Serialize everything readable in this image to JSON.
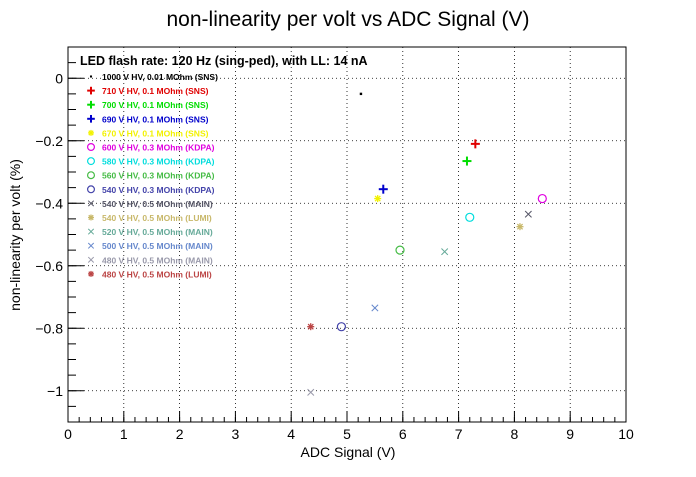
{
  "chart_data": {
    "type": "scatter",
    "title": "non-linearity per volt vs ADC Signal (V)",
    "xlabel": "ADC Signal (V)",
    "ylabel": "non-linearity per volt (%)",
    "xlim": [
      0,
      10
    ],
    "ylim": [
      -1.1,
      0.1
    ],
    "xticks": [
      0,
      1,
      2,
      3,
      4,
      5,
      6,
      7,
      8,
      9,
      10
    ],
    "yticks": [
      0,
      -0.2,
      -0.4,
      -0.6,
      -0.8,
      -1
    ],
    "ytick_labels": [
      "0",
      "−0.2",
      "−0.4",
      "−0.6",
      "−0.8",
      "−1"
    ],
    "grid": true,
    "legend_header": "LED flash rate: 120 Hz  (sing-ped), with LL: 14 nA",
    "legend_placement": "top-left",
    "series": [
      {
        "name": "1000 V HV, 0.01 MOhm (SNS)",
        "color": "#000000",
        "marker": "dot",
        "points": [
          [
            5.25,
            -0.05
          ]
        ]
      },
      {
        "name": "710 V HV, 0.1 MOhm (SNS)",
        "color": "#e00000",
        "marker": "plus",
        "points": [
          [
            7.3,
            -0.21
          ]
        ]
      },
      {
        "name": "700 V HV, 0.1 MOhm (SNS)",
        "color": "#00dd00",
        "marker": "plus",
        "points": [
          [
            7.15,
            -0.265
          ]
        ]
      },
      {
        "name": "690 V HV, 0.1 MOhm (SNS)",
        "color": "#0000cc",
        "marker": "plus",
        "points": [
          [
            5.65,
            -0.355
          ]
        ]
      },
      {
        "name": "670 V HV, 0.1 MOhm (SNS)",
        "color": "#f2f200",
        "marker": "star",
        "points": [
          [
            5.55,
            -0.385
          ]
        ]
      },
      {
        "name": "600 V HV, 0.3 MOhm (KDPA)",
        "color": "#e000e0",
        "marker": "circle",
        "points": [
          [
            8.5,
            -0.385
          ]
        ]
      },
      {
        "name": "580 V HV, 0.3 MOhm (KDPA)",
        "color": "#00dddd",
        "marker": "circle",
        "points": [
          [
            7.2,
            -0.445
          ]
        ]
      },
      {
        "name": "560 V HV, 0.3 MOhm (KDPA)",
        "color": "#44bb44",
        "marker": "circle",
        "points": [
          [
            5.95,
            -0.55
          ]
        ]
      },
      {
        "name": "540 V HV, 0.3 MOhm (KDPA)",
        "color": "#4444aa",
        "marker": "circle",
        "points": [
          [
            4.9,
            -0.795
          ]
        ]
      },
      {
        "name": "540 V HV, 0.5 MOhm (MAIN)",
        "color": "#555566",
        "marker": "cross",
        "points": [
          [
            8.25,
            -0.435
          ]
        ]
      },
      {
        "name": "540 V HV, 0.5 MOhm (LUMI)",
        "color": "#c8b86a",
        "marker": "star",
        "points": [
          [
            8.1,
            -0.475
          ]
        ]
      },
      {
        "name": "520 V HV, 0.5 MOhm (MAIN)",
        "color": "#66aa99",
        "marker": "cross",
        "points": [
          [
            6.75,
            -0.555
          ]
        ]
      },
      {
        "name": "500 V HV, 0.5 MOhm (MAIN)",
        "color": "#6688cc",
        "marker": "cross",
        "points": [
          [
            5.5,
            -0.735
          ]
        ]
      },
      {
        "name": "480 V HV, 0.5 MOhm (MAIN)",
        "color": "#9999aa",
        "marker": "cross",
        "points": [
          [
            4.35,
            -1.005
          ]
        ]
      },
      {
        "name": "480 V HV, 0.5 MOhm (LUMI)",
        "color": "#bb4444",
        "marker": "star",
        "points": [
          [
            4.35,
            -0.795
          ]
        ]
      }
    ]
  }
}
